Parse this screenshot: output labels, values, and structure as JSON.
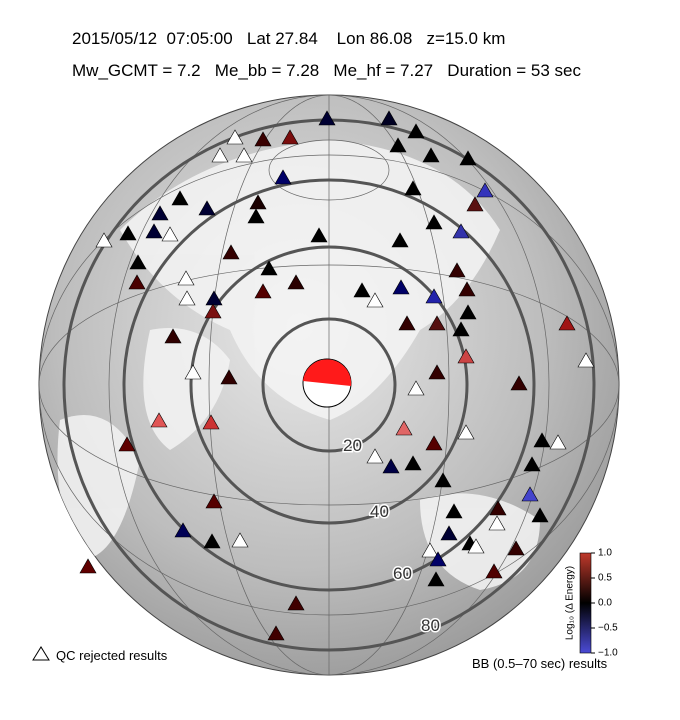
{
  "header": {
    "line1": "2015/05/12  07:05:00   Lat 27.84    Lon 86.08   z=15.0 km",
    "line2": "Mw_GCMT = 7.2   Me_bb = 7.28   Me_hf = 7.27   Duration = 53 sec"
  },
  "map": {
    "distance_labels": [
      "20",
      "40",
      "60",
      "80"
    ]
  },
  "legend": {
    "qc_rejected": "QC rejected results",
    "results": "BB (0.5–70 sec) results"
  },
  "colorbar": {
    "label": "Log₁₀ (Δ Energy)",
    "ticks": [
      "1.0",
      "0.5",
      "0.0",
      "−0.5",
      "−1.0"
    ]
  }
}
